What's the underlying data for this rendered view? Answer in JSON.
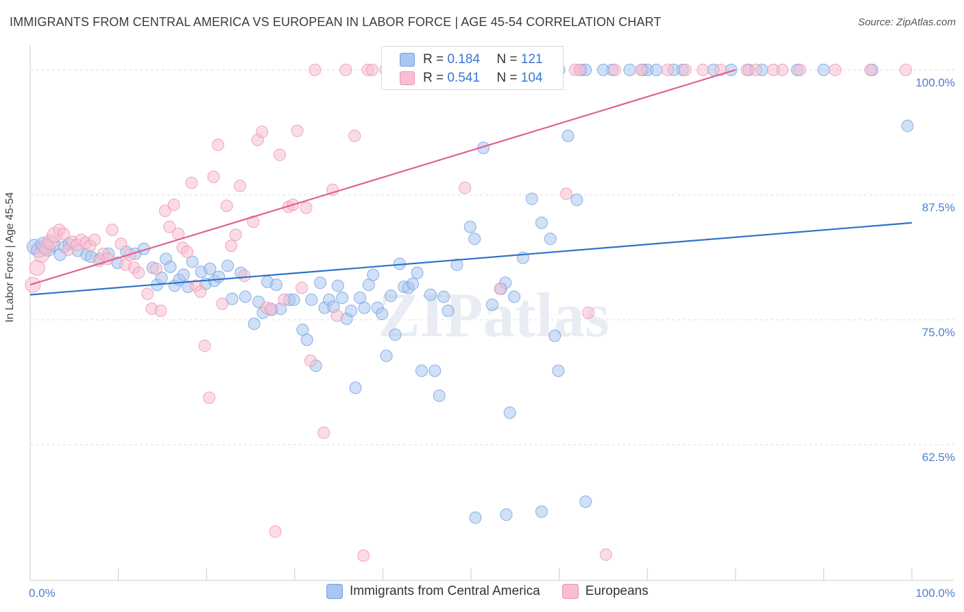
{
  "title": "IMMIGRANTS FROM CENTRAL AMERICA VS EUROPEAN IN LABOR FORCE | AGE 45-54 CORRELATION CHART",
  "source": "Source: ZipAtlas.com",
  "watermark": "ZIPatlas",
  "legend": {
    "r_label": "R =",
    "n_label": "N =",
    "rows": [
      {
        "r": "0.184",
        "n": "121"
      },
      {
        "r": "0.541",
        "n": "104"
      }
    ]
  },
  "colors": {
    "blue_fill": "#a9c6ee",
    "blue_stroke": "#6f9fe0",
    "blue_line": "#2f72c9",
    "pink_fill": "#f7bfd1",
    "pink_stroke": "#ea92b1",
    "pink_line": "#e0608f",
    "tick_color": "#4a7fd0"
  },
  "chart_data": {
    "type": "scatter",
    "title": "IMMIGRANTS FROM CENTRAL AMERICA VS EUROPEAN IN LABOR FORCE | AGE 45-54 CORRELATION CHART",
    "xlabel": "",
    "ylabel": "In Labor Force | Age 45-54",
    "xlim": [
      0,
      100
    ],
    "ylim": [
      50.5,
      101.5
    ],
    "x_tick_labels": [
      "0.0%",
      "100.0%"
    ],
    "y_ticks": [
      62.5,
      75.0,
      87.5,
      100.0
    ],
    "y_tick_labels": [
      "62.5%",
      "75.0%",
      "87.5%",
      "100.0%"
    ],
    "grid": "horizontal dashed",
    "series": [
      {
        "name": "Immigrants from Central America",
        "trend": {
          "x": [
            0,
            100
          ],
          "y": [
            77.5,
            84.7
          ]
        },
        "points": [
          [
            0.5,
            82.3
          ],
          [
            1,
            82
          ],
          [
            1.5,
            82.5
          ],
          [
            2,
            82.1
          ],
          [
            2.5,
            82.6
          ],
          [
            3.4,
            81.5
          ],
          [
            3.9,
            82.3
          ],
          [
            4.4,
            82.6
          ],
          [
            5.4,
            81.9
          ],
          [
            6.4,
            81.5
          ],
          [
            6.9,
            81.3
          ],
          [
            7.9,
            81.1
          ],
          [
            8.9,
            81.6
          ],
          [
            9.9,
            80.7
          ],
          [
            10.9,
            81.8
          ],
          [
            11.9,
            81.6
          ],
          [
            12.9,
            82.1
          ],
          [
            13.9,
            80.2
          ],
          [
            14.4,
            78.5
          ],
          [
            14.9,
            79.2
          ],
          [
            15.4,
            81.1
          ],
          [
            15.9,
            80.3
          ],
          [
            16.4,
            78.4
          ],
          [
            16.9,
            79.0
          ],
          [
            17.4,
            79.5
          ],
          [
            17.9,
            78.3
          ],
          [
            18.4,
            80.8
          ],
          [
            19.4,
            79.8
          ],
          [
            19.9,
            78.6
          ],
          [
            20.4,
            80.1
          ],
          [
            20.9,
            78.9
          ],
          [
            21.4,
            79.3
          ],
          [
            22.4,
            80.4
          ],
          [
            22.9,
            77.1
          ],
          [
            23.9,
            79.7
          ],
          [
            24.4,
            77.3
          ],
          [
            25.4,
            74.6
          ],
          [
            25.9,
            76.8
          ],
          [
            26.4,
            75.7
          ],
          [
            26.9,
            78.8
          ],
          [
            27.4,
            76.0
          ],
          [
            27.9,
            78.5
          ],
          [
            28.4,
            76.1
          ],
          [
            29.4,
            77.0
          ],
          [
            29.9,
            77.0
          ],
          [
            30.9,
            74.0
          ],
          [
            31.4,
            73.0
          ],
          [
            31.9,
            77.0
          ],
          [
            32.4,
            70.4
          ],
          [
            32.9,
            78.7
          ],
          [
            33.4,
            76.2
          ],
          [
            33.9,
            77.0
          ],
          [
            34.4,
            76.3
          ],
          [
            34.9,
            78.4
          ],
          [
            35.4,
            77.2
          ],
          [
            35.9,
            75.1
          ],
          [
            36.4,
            75.9
          ],
          [
            36.9,
            68.2
          ],
          [
            37.4,
            77.2
          ],
          [
            37.9,
            76.2
          ],
          [
            38.4,
            78.5
          ],
          [
            38.9,
            79.5
          ],
          [
            39.4,
            76.2
          ],
          [
            39.9,
            75.6
          ],
          [
            40.4,
            71.4
          ],
          [
            40.9,
            77.4
          ],
          [
            41.4,
            73.5
          ],
          [
            41.9,
            80.6
          ],
          [
            42.4,
            78.3
          ],
          [
            42.9,
            78.2
          ],
          [
            43.4,
            78.6
          ],
          [
            43.9,
            79.7
          ],
          [
            44.4,
            69.9
          ],
          [
            45.4,
            77.5
          ],
          [
            45.9,
            69.9
          ],
          [
            46.4,
            67.4
          ],
          [
            46.9,
            77.3
          ],
          [
            47.4,
            75.9
          ],
          [
            48.4,
            80.5
          ],
          [
            49.9,
            84.3
          ],
          [
            50.4,
            83.1
          ],
          [
            51.4,
            92.2
          ],
          [
            52.4,
            76.5
          ],
          [
            53.4,
            78.1
          ],
          [
            53.9,
            78.7
          ],
          [
            54.4,
            65.7
          ],
          [
            54.9,
            77.3
          ],
          [
            55.9,
            81.2
          ],
          [
            56.9,
            87.1
          ],
          [
            58.0,
            84.7
          ],
          [
            59.0,
            83.1
          ],
          [
            59.5,
            73.4
          ],
          [
            59.9,
            69.9
          ],
          [
            61.0,
            93.4
          ],
          [
            62.0,
            87.0
          ],
          [
            62.5,
            100
          ],
          [
            63.0,
            100
          ],
          [
            66.0,
            100
          ],
          [
            69.5,
            100
          ],
          [
            70.0,
            100
          ],
          [
            71.0,
            100
          ],
          [
            74.0,
            100
          ],
          [
            77.5,
            100
          ],
          [
            79.5,
            100
          ],
          [
            81.5,
            100
          ],
          [
            83.0,
            100
          ],
          [
            87.0,
            100
          ],
          [
            90.0,
            100
          ],
          [
            95.5,
            100
          ],
          [
            99.5,
            94.4
          ],
          [
            50.5,
            55.2
          ],
          [
            54.0,
            55.5
          ],
          [
            58.0,
            55.8
          ],
          [
            63.0,
            56.8
          ],
          [
            42.5,
            100
          ],
          [
            45.5,
            100
          ],
          [
            48.0,
            100
          ],
          [
            52.0,
            100
          ],
          [
            56.0,
            100
          ],
          [
            60.0,
            100
          ],
          [
            65.0,
            100
          ],
          [
            68.0,
            100
          ],
          [
            73.0,
            100
          ]
        ]
      },
      {
        "name": "Europeans",
        "trend": {
          "x": [
            0,
            80
          ],
          "y": [
            78.5,
            100
          ]
        },
        "points": [
          [
            0.3,
            78.5
          ],
          [
            0.8,
            80.2
          ],
          [
            1.3,
            81.5
          ],
          [
            1.8,
            82.3
          ],
          [
            2.3,
            82.8
          ],
          [
            2.8,
            83.5
          ],
          [
            3.3,
            84.0
          ],
          [
            3.8,
            83.6
          ],
          [
            4.3,
            82.0
          ],
          [
            4.8,
            82.8
          ],
          [
            5.3,
            82.5
          ],
          [
            5.8,
            83.0
          ],
          [
            6.3,
            82.7
          ],
          [
            6.8,
            82.4
          ],
          [
            7.3,
            83.0
          ],
          [
            7.8,
            80.9
          ],
          [
            8.3,
            81.6
          ],
          [
            8.8,
            81.1
          ],
          [
            9.3,
            84.0
          ],
          [
            10.3,
            82.6
          ],
          [
            10.8,
            80.5
          ],
          [
            11.3,
            81.5
          ],
          [
            11.8,
            80.2
          ],
          [
            12.3,
            79.7
          ],
          [
            13.3,
            77.6
          ],
          [
            13.8,
            76.1
          ],
          [
            14.3,
            80.1
          ],
          [
            14.8,
            75.9
          ],
          [
            15.3,
            85.9
          ],
          [
            15.8,
            84.3
          ],
          [
            16.3,
            86.5
          ],
          [
            16.8,
            83.6
          ],
          [
            17.3,
            82.2
          ],
          [
            17.8,
            81.8
          ],
          [
            18.3,
            88.7
          ],
          [
            18.8,
            78.4
          ],
          [
            19.3,
            77.8
          ],
          [
            19.8,
            72.4
          ],
          [
            20.3,
            67.2
          ],
          [
            20.8,
            89.3
          ],
          [
            21.3,
            92.5
          ],
          [
            21.8,
            76.6
          ],
          [
            22.3,
            86.4
          ],
          [
            22.8,
            82.4
          ],
          [
            23.3,
            83.5
          ],
          [
            23.8,
            88.4
          ],
          [
            24.3,
            79.4
          ],
          [
            25.3,
            84.8
          ],
          [
            25.8,
            93.0
          ],
          [
            26.3,
            93.8
          ],
          [
            26.8,
            76.2
          ],
          [
            27.3,
            76.1
          ],
          [
            27.8,
            53.8
          ],
          [
            28.3,
            91.5
          ],
          [
            28.8,
            77.0
          ],
          [
            29.3,
            86.3
          ],
          [
            29.8,
            86.5
          ],
          [
            30.3,
            93.9
          ],
          [
            30.8,
            78.2
          ],
          [
            31.3,
            86.2
          ],
          [
            31.8,
            70.9
          ],
          [
            32.3,
            100
          ],
          [
            33.3,
            63.7
          ],
          [
            34.3,
            88.0
          ],
          [
            34.8,
            75.4
          ],
          [
            35.8,
            100
          ],
          [
            36.8,
            93.4
          ],
          [
            37.8,
            51.4
          ],
          [
            38.3,
            100
          ],
          [
            38.8,
            100
          ],
          [
            40.3,
            100
          ],
          [
            41.3,
            100
          ],
          [
            42.3,
            100
          ],
          [
            45.3,
            100
          ],
          [
            48.3,
            100
          ],
          [
            49.3,
            88.2
          ],
          [
            50.3,
            100
          ],
          [
            53.3,
            78.1
          ],
          [
            53.8,
            100
          ],
          [
            55.3,
            100
          ],
          [
            58.3,
            100
          ],
          [
            60.8,
            87.6
          ],
          [
            61.8,
            100
          ],
          [
            62.3,
            100
          ],
          [
            63.3,
            75.7
          ],
          [
            65.3,
            51.5
          ],
          [
            66.3,
            100
          ],
          [
            69.3,
            100
          ],
          [
            72.3,
            100
          ],
          [
            74.3,
            100
          ],
          [
            76.3,
            100
          ],
          [
            78.3,
            100
          ],
          [
            81.3,
            100
          ],
          [
            82.3,
            100
          ],
          [
            85.3,
            100
          ],
          [
            87.3,
            100
          ],
          [
            91.3,
            100
          ],
          [
            95.3,
            100
          ],
          [
            99.3,
            100
          ],
          [
            84.3,
            100
          ],
          [
            57.3,
            100
          ],
          [
            43.3,
            100
          ]
        ]
      }
    ]
  }
}
